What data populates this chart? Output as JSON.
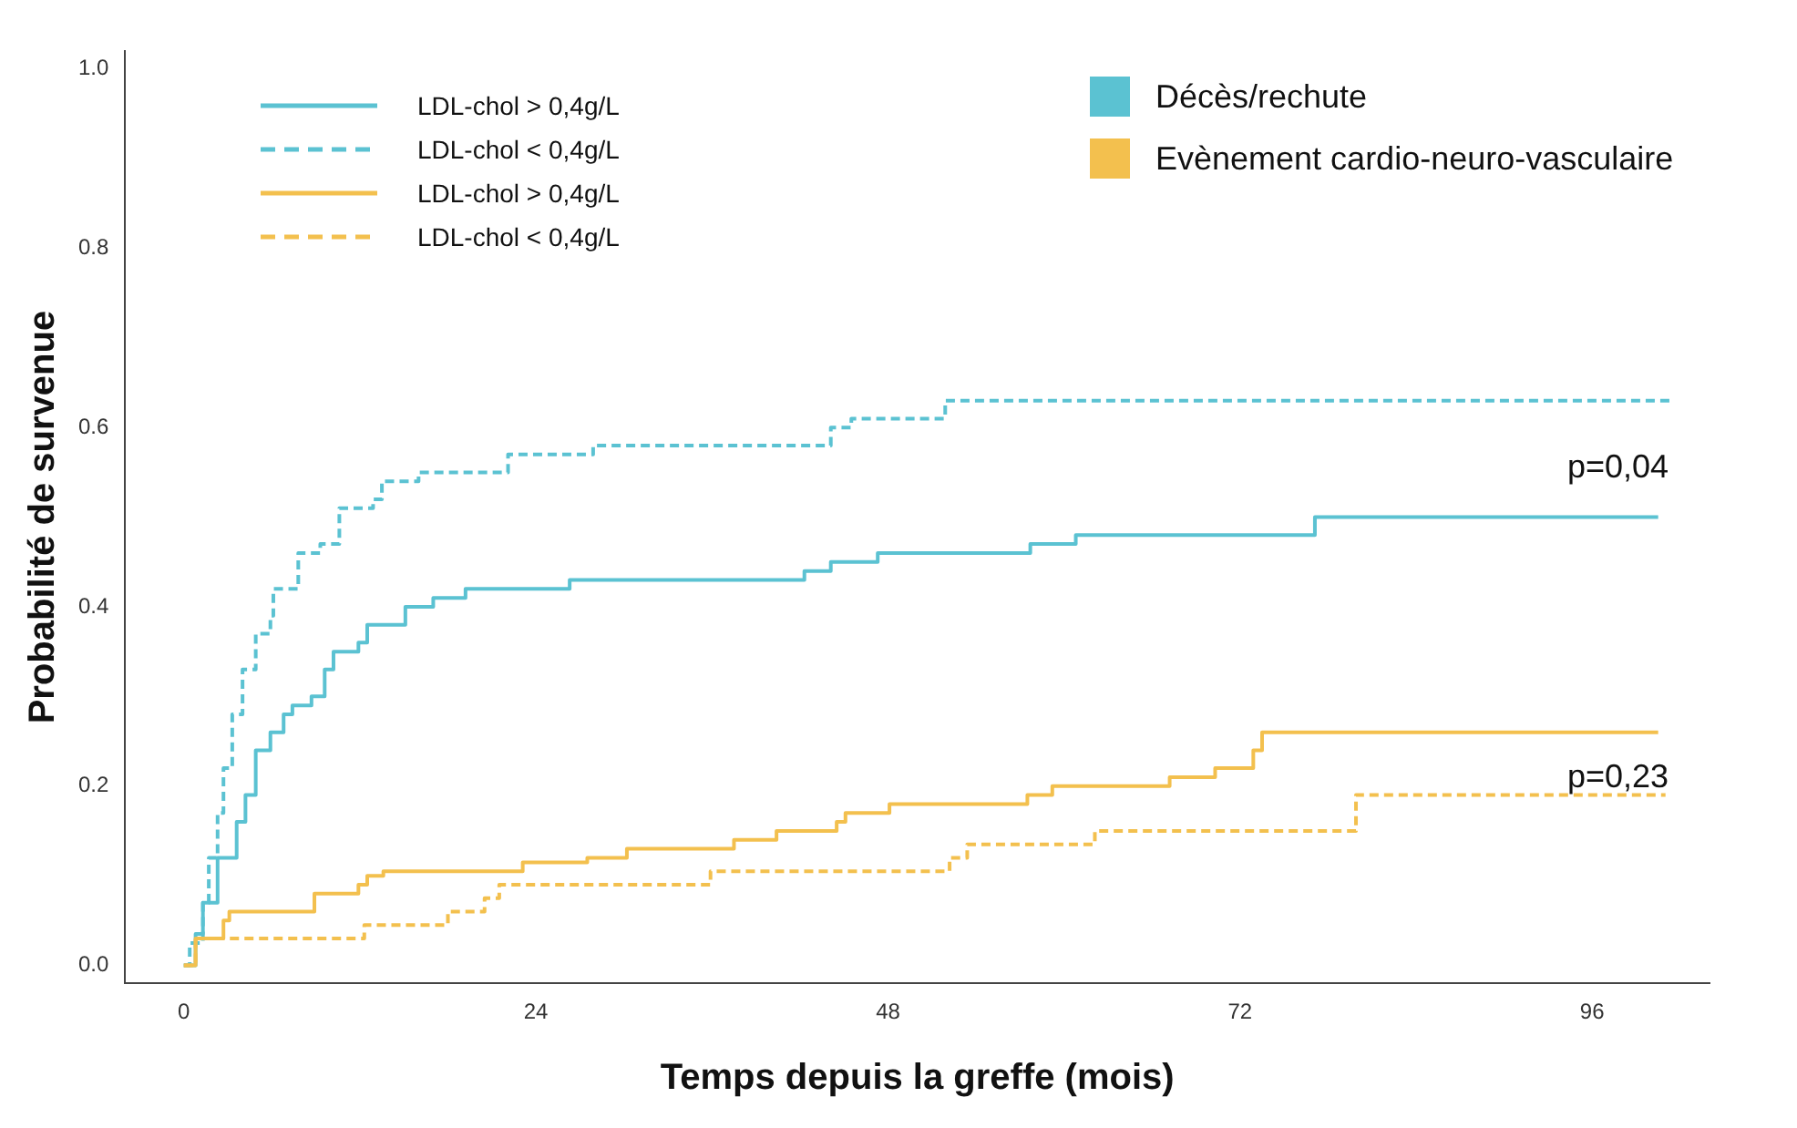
{
  "chart_data": {
    "type": "step",
    "xlabel": "Temps depuis la greffe (mois)",
    "ylabel": "Probabilité de survenue",
    "xlim": [
      -4,
      104
    ],
    "xticks": [
      0,
      24,
      48,
      72,
      96
    ],
    "ylim": [
      -0.02,
      1.02
    ],
    "yticks": [
      {
        "value": 0,
        "label": "0.0"
      },
      {
        "value": 0.2,
        "label": "0.2"
      },
      {
        "value": 0.4,
        "label": "0.4"
      },
      {
        "value": 0.6,
        "label": "0.6"
      },
      {
        "value": 0.8,
        "label": "0.8"
      },
      {
        "value": 1,
        "label": "1.0"
      }
    ],
    "grid": false,
    "legend": "top left",
    "marker": "none",
    "series": [
      {
        "name": "LDL-chol > 0,4g/L",
        "color": "#5bc2d2",
        "line_style": "solid",
        "x": [
          0,
          0.8,
          1.3,
          2.3,
          3.6,
          4.2,
          4.9,
          5.9,
          6.8,
          7.4,
          8.7,
          9.6,
          10.2,
          11.9,
          12.5,
          15.1,
          17,
          19.2,
          26.3,
          42.3,
          44.1,
          47.3,
          57.7,
          60.8,
          77.1,
          100.5
        ],
        "values": [
          0,
          0.035,
          0.07,
          0.12,
          0.16,
          0.19,
          0.24,
          0.26,
          0.28,
          0.29,
          0.3,
          0.33,
          0.35,
          0.36,
          0.38,
          0.4,
          0.41,
          0.42,
          0.43,
          0.44,
          0.45,
          0.46,
          0.47,
          0.48,
          0.5,
          0.5
        ]
      },
      {
        "name": "LDL-chol < 0,4g/L",
        "color": "#5bc2d2",
        "line_style": "dashed",
        "x": [
          0,
          0.4,
          1.3,
          1.7,
          2.3,
          2.7,
          3.3,
          4,
          4.9,
          5.9,
          6.1,
          7.8,
          9.3,
          10.6,
          12.9,
          13.5,
          16,
          22.1,
          27.9,
          44.1,
          45.5,
          51.9,
          101.6
        ],
        "values": [
          0,
          0.025,
          0.07,
          0.12,
          0.17,
          0.22,
          0.28,
          0.33,
          0.37,
          0.39,
          0.42,
          0.46,
          0.47,
          0.51,
          0.52,
          0.54,
          0.55,
          0.57,
          0.58,
          0.6,
          0.61,
          0.63,
          0.63
        ]
      },
      {
        "name": "LDL-chol > 0,4g/L",
        "color": "#f3c04e",
        "line_style": "solid",
        "x": [
          0,
          0.8,
          2.7,
          3.1,
          8.9,
          11.9,
          12.5,
          13.6,
          23.1,
          27.5,
          30.2,
          37.5,
          40.4,
          44.5,
          45.1,
          48.1,
          57.5,
          59.2,
          67.2,
          70.3,
          72.9,
          73.5,
          100.5
        ],
        "values": [
          0,
          0.03,
          0.05,
          0.06,
          0.08,
          0.09,
          0.1,
          0.105,
          0.115,
          0.12,
          0.13,
          0.14,
          0.15,
          0.16,
          0.17,
          0.18,
          0.19,
          0.2,
          0.21,
          0.22,
          0.24,
          0.26,
          0.26
        ]
      },
      {
        "name": "LDL-chol < 0,4g/L",
        "color": "#f3c04e",
        "line_style": "dashed",
        "x": [
          0,
          0.8,
          12.3,
          18,
          20.5,
          21.5,
          35.9,
          52.2,
          53.4,
          62.1,
          79.9,
          101
        ],
        "values": [
          0,
          0.03,
          0.045,
          0.06,
          0.075,
          0.09,
          0.105,
          0.12,
          0.135,
          0.15,
          0.19,
          0.19
        ]
      }
    ],
    "annotations": [
      "Décès/rechute",
      "Evènement cardio-neuro-vasculaire",
      "p=0,04",
      "p=0,23"
    ]
  }
}
